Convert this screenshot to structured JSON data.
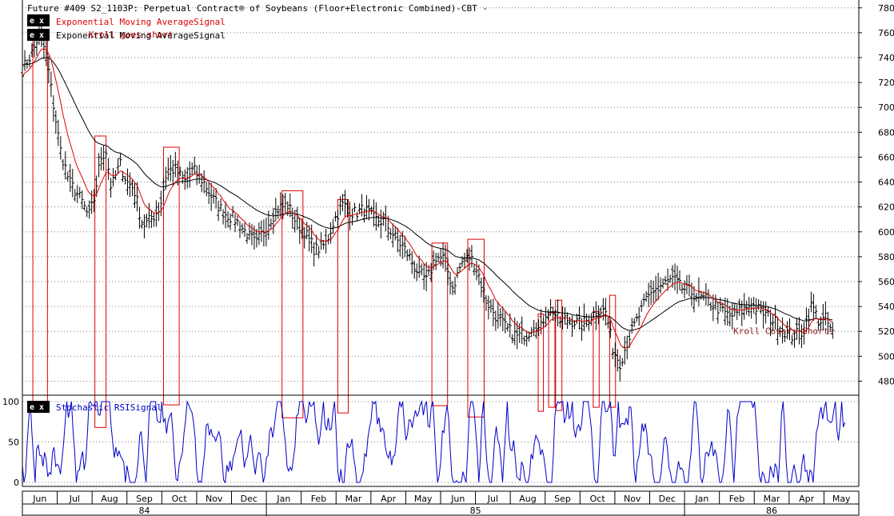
{
  "chart_data": {
    "type": "line",
    "title": "Future #409 S2_1103P: Perpetual Contract® of Soybeans (Floor+Electronic Combined)-CBT -",
    "price_panel": {
      "ylim": [
        470,
        785
      ],
      "y_ticks": [
        480,
        500,
        520,
        540,
        560,
        580,
        600,
        620,
        640,
        660,
        680,
        700,
        720,
        740,
        760,
        780
      ],
      "legend": [
        {
          "badge": "e x",
          "label": "Exponential Moving AverageSignal",
          "color": "#e00000"
        },
        {
          "badge": "e x",
          "label": "Exponential Moving AverageSignal",
          "color": "#000000"
        }
      ],
      "annotations": [
        {
          "text": "Kroll goes short",
          "color": "#b00000",
          "t": 1.9,
          "y": 756
        },
        {
          "text": "Kroll Covers Shorts",
          "color": "#8b1a1a",
          "t": 20.4,
          "y": 518
        }
      ],
      "close": [
        {
          "t": 0.0,
          "y": 730
        },
        {
          "t": 0.3,
          "y": 745
        },
        {
          "t": 0.5,
          "y": 760
        },
        {
          "t": 0.7,
          "y": 740
        },
        {
          "t": 0.9,
          "y": 700
        },
        {
          "t": 1.1,
          "y": 665
        },
        {
          "t": 1.35,
          "y": 640
        },
        {
          "t": 1.7,
          "y": 625
        },
        {
          "t": 1.9,
          "y": 612
        },
        {
          "t": 2.05,
          "y": 625
        },
        {
          "t": 2.25,
          "y": 660
        },
        {
          "t": 2.4,
          "y": 665
        },
        {
          "t": 2.55,
          "y": 635
        },
        {
          "t": 2.8,
          "y": 655
        },
        {
          "t": 3.0,
          "y": 640
        },
        {
          "t": 3.2,
          "y": 635
        },
        {
          "t": 3.45,
          "y": 605
        },
        {
          "t": 3.7,
          "y": 610
        },
        {
          "t": 3.95,
          "y": 620
        },
        {
          "t": 4.15,
          "y": 650
        },
        {
          "t": 4.4,
          "y": 650
        },
        {
          "t": 4.65,
          "y": 640
        },
        {
          "t": 4.9,
          "y": 650
        },
        {
          "t": 5.2,
          "y": 640
        },
        {
          "t": 5.5,
          "y": 625
        },
        {
          "t": 5.8,
          "y": 615
        },
        {
          "t": 6.1,
          "y": 610
        },
        {
          "t": 6.4,
          "y": 600
        },
        {
          "t": 6.7,
          "y": 590
        },
        {
          "t": 7.0,
          "y": 605
        },
        {
          "t": 7.3,
          "y": 618
        },
        {
          "t": 7.6,
          "y": 622
        },
        {
          "t": 7.85,
          "y": 608
        },
        {
          "t": 8.1,
          "y": 600
        },
        {
          "t": 8.4,
          "y": 585
        },
        {
          "t": 8.7,
          "y": 590
        },
        {
          "t": 8.95,
          "y": 610
        },
        {
          "t": 9.2,
          "y": 622
        },
        {
          "t": 9.5,
          "y": 615
        },
        {
          "t": 9.8,
          "y": 618
        },
        {
          "t": 10.1,
          "y": 610
        },
        {
          "t": 10.4,
          "y": 608
        },
        {
          "t": 10.7,
          "y": 595
        },
        {
          "t": 11.0,
          "y": 585
        },
        {
          "t": 11.3,
          "y": 570
        },
        {
          "t": 11.6,
          "y": 560
        },
        {
          "t": 11.85,
          "y": 580
        },
        {
          "t": 12.1,
          "y": 578
        },
        {
          "t": 12.35,
          "y": 555
        },
        {
          "t": 12.6,
          "y": 575
        },
        {
          "t": 12.85,
          "y": 580
        },
        {
          "t": 13.05,
          "y": 570
        },
        {
          "t": 13.3,
          "y": 545
        },
        {
          "t": 13.6,
          "y": 532
        },
        {
          "t": 13.9,
          "y": 522
        },
        {
          "t": 14.2,
          "y": 516
        },
        {
          "t": 14.5,
          "y": 518
        },
        {
          "t": 14.7,
          "y": 528
        },
        {
          "t": 14.85,
          "y": 520
        },
        {
          "t": 15.0,
          "y": 535
        },
        {
          "t": 15.2,
          "y": 538
        },
        {
          "t": 15.4,
          "y": 528
        },
        {
          "t": 15.6,
          "y": 530
        },
        {
          "t": 15.85,
          "y": 528
        },
        {
          "t": 16.05,
          "y": 525
        },
        {
          "t": 16.3,
          "y": 532
        },
        {
          "t": 16.55,
          "y": 538
        },
        {
          "t": 16.75,
          "y": 535
        },
        {
          "t": 16.95,
          "y": 505
        },
        {
          "t": 17.15,
          "y": 495
        },
        {
          "t": 17.4,
          "y": 515
        },
        {
          "t": 17.65,
          "y": 530
        },
        {
          "t": 17.9,
          "y": 545
        },
        {
          "t": 18.15,
          "y": 555
        },
        {
          "t": 18.4,
          "y": 558
        },
        {
          "t": 18.65,
          "y": 562
        },
        {
          "t": 18.9,
          "y": 555
        },
        {
          "t": 19.15,
          "y": 552
        },
        {
          "t": 19.4,
          "y": 548
        },
        {
          "t": 19.7,
          "y": 544
        },
        {
          "t": 20.0,
          "y": 538
        },
        {
          "t": 20.3,
          "y": 532
        },
        {
          "t": 20.6,
          "y": 536
        },
        {
          "t": 20.9,
          "y": 542
        },
        {
          "t": 21.2,
          "y": 536
        },
        {
          "t": 21.5,
          "y": 530
        },
        {
          "t": 21.8,
          "y": 522
        },
        {
          "t": 22.1,
          "y": 516
        },
        {
          "t": 22.4,
          "y": 520
        },
        {
          "t": 22.65,
          "y": 542
        },
        {
          "t": 22.85,
          "y": 528
        },
        {
          "t": 23.05,
          "y": 530
        },
        {
          "t": 23.25,
          "y": 518
        }
      ],
      "bar_range": 14,
      "ema_fast_alpha": 0.2,
      "ema_slow_alpha": 0.055,
      "signal_boxes": [
        {
          "t0": 0.3,
          "t1": 0.72,
          "top": 757,
          "bottom": 466
        },
        {
          "t0": 2.08,
          "t1": 2.4,
          "top": 677,
          "bottom": 438
        },
        {
          "t0": 4.05,
          "t1": 4.5,
          "top": 668,
          "bottom": 466
        },
        {
          "t0": 7.45,
          "t1": 8.05,
          "top": 633,
          "bottom": 450
        },
        {
          "t0": 9.05,
          "t1": 9.35,
          "top": 626,
          "bottom": 456
        },
        {
          "t0": 11.75,
          "t1": 12.2,
          "top": 591,
          "bottom": 465
        },
        {
          "t0": 12.78,
          "t1": 13.25,
          "top": 594,
          "bottom": 451
        },
        {
          "t0": 14.8,
          "t1": 14.95,
          "top": 534,
          "bottom": 458
        },
        {
          "t0": 15.1,
          "t1": 15.28,
          "top": 535,
          "bottom": 463
        },
        {
          "t0": 15.3,
          "t1": 15.48,
          "top": 545,
          "bottom": 459
        },
        {
          "t0": 16.38,
          "t1": 16.55,
          "top": 536,
          "bottom": 463
        },
        {
          "t0": 16.85,
          "t1": 17.02,
          "top": 549,
          "bottom": 463
        }
      ]
    },
    "rsi_panel": {
      "label": "Stochastic RSISignal",
      "badge": "e x",
      "color": "#0000c8",
      "ylim": [
        -5,
        105
      ],
      "y_ticks": [
        0,
        50,
        100
      ],
      "seed": 7
    },
    "x_axis": {
      "months": [
        "Jun",
        "Jul",
        "Aug",
        "Sep",
        "Oct",
        "Nov",
        "Dec",
        "Jan",
        "Feb",
        "Mar",
        "Apr",
        "May",
        "Jun",
        "Jul",
        "Aug",
        "Sep",
        "Oct",
        "Nov",
        "Dec",
        "Jan",
        "Feb",
        "Mar",
        "Apr",
        "May"
      ],
      "years": [
        {
          "label": "84",
          "t0": 0,
          "t1": 7
        },
        {
          "label": "85",
          "t0": 7,
          "t1": 19
        },
        {
          "label": "86",
          "t0": 19,
          "t1": 24
        }
      ]
    },
    "grid": true,
    "colors": {
      "price_bars": "#000000",
      "grid": "#808080",
      "box": "#e00000"
    }
  }
}
